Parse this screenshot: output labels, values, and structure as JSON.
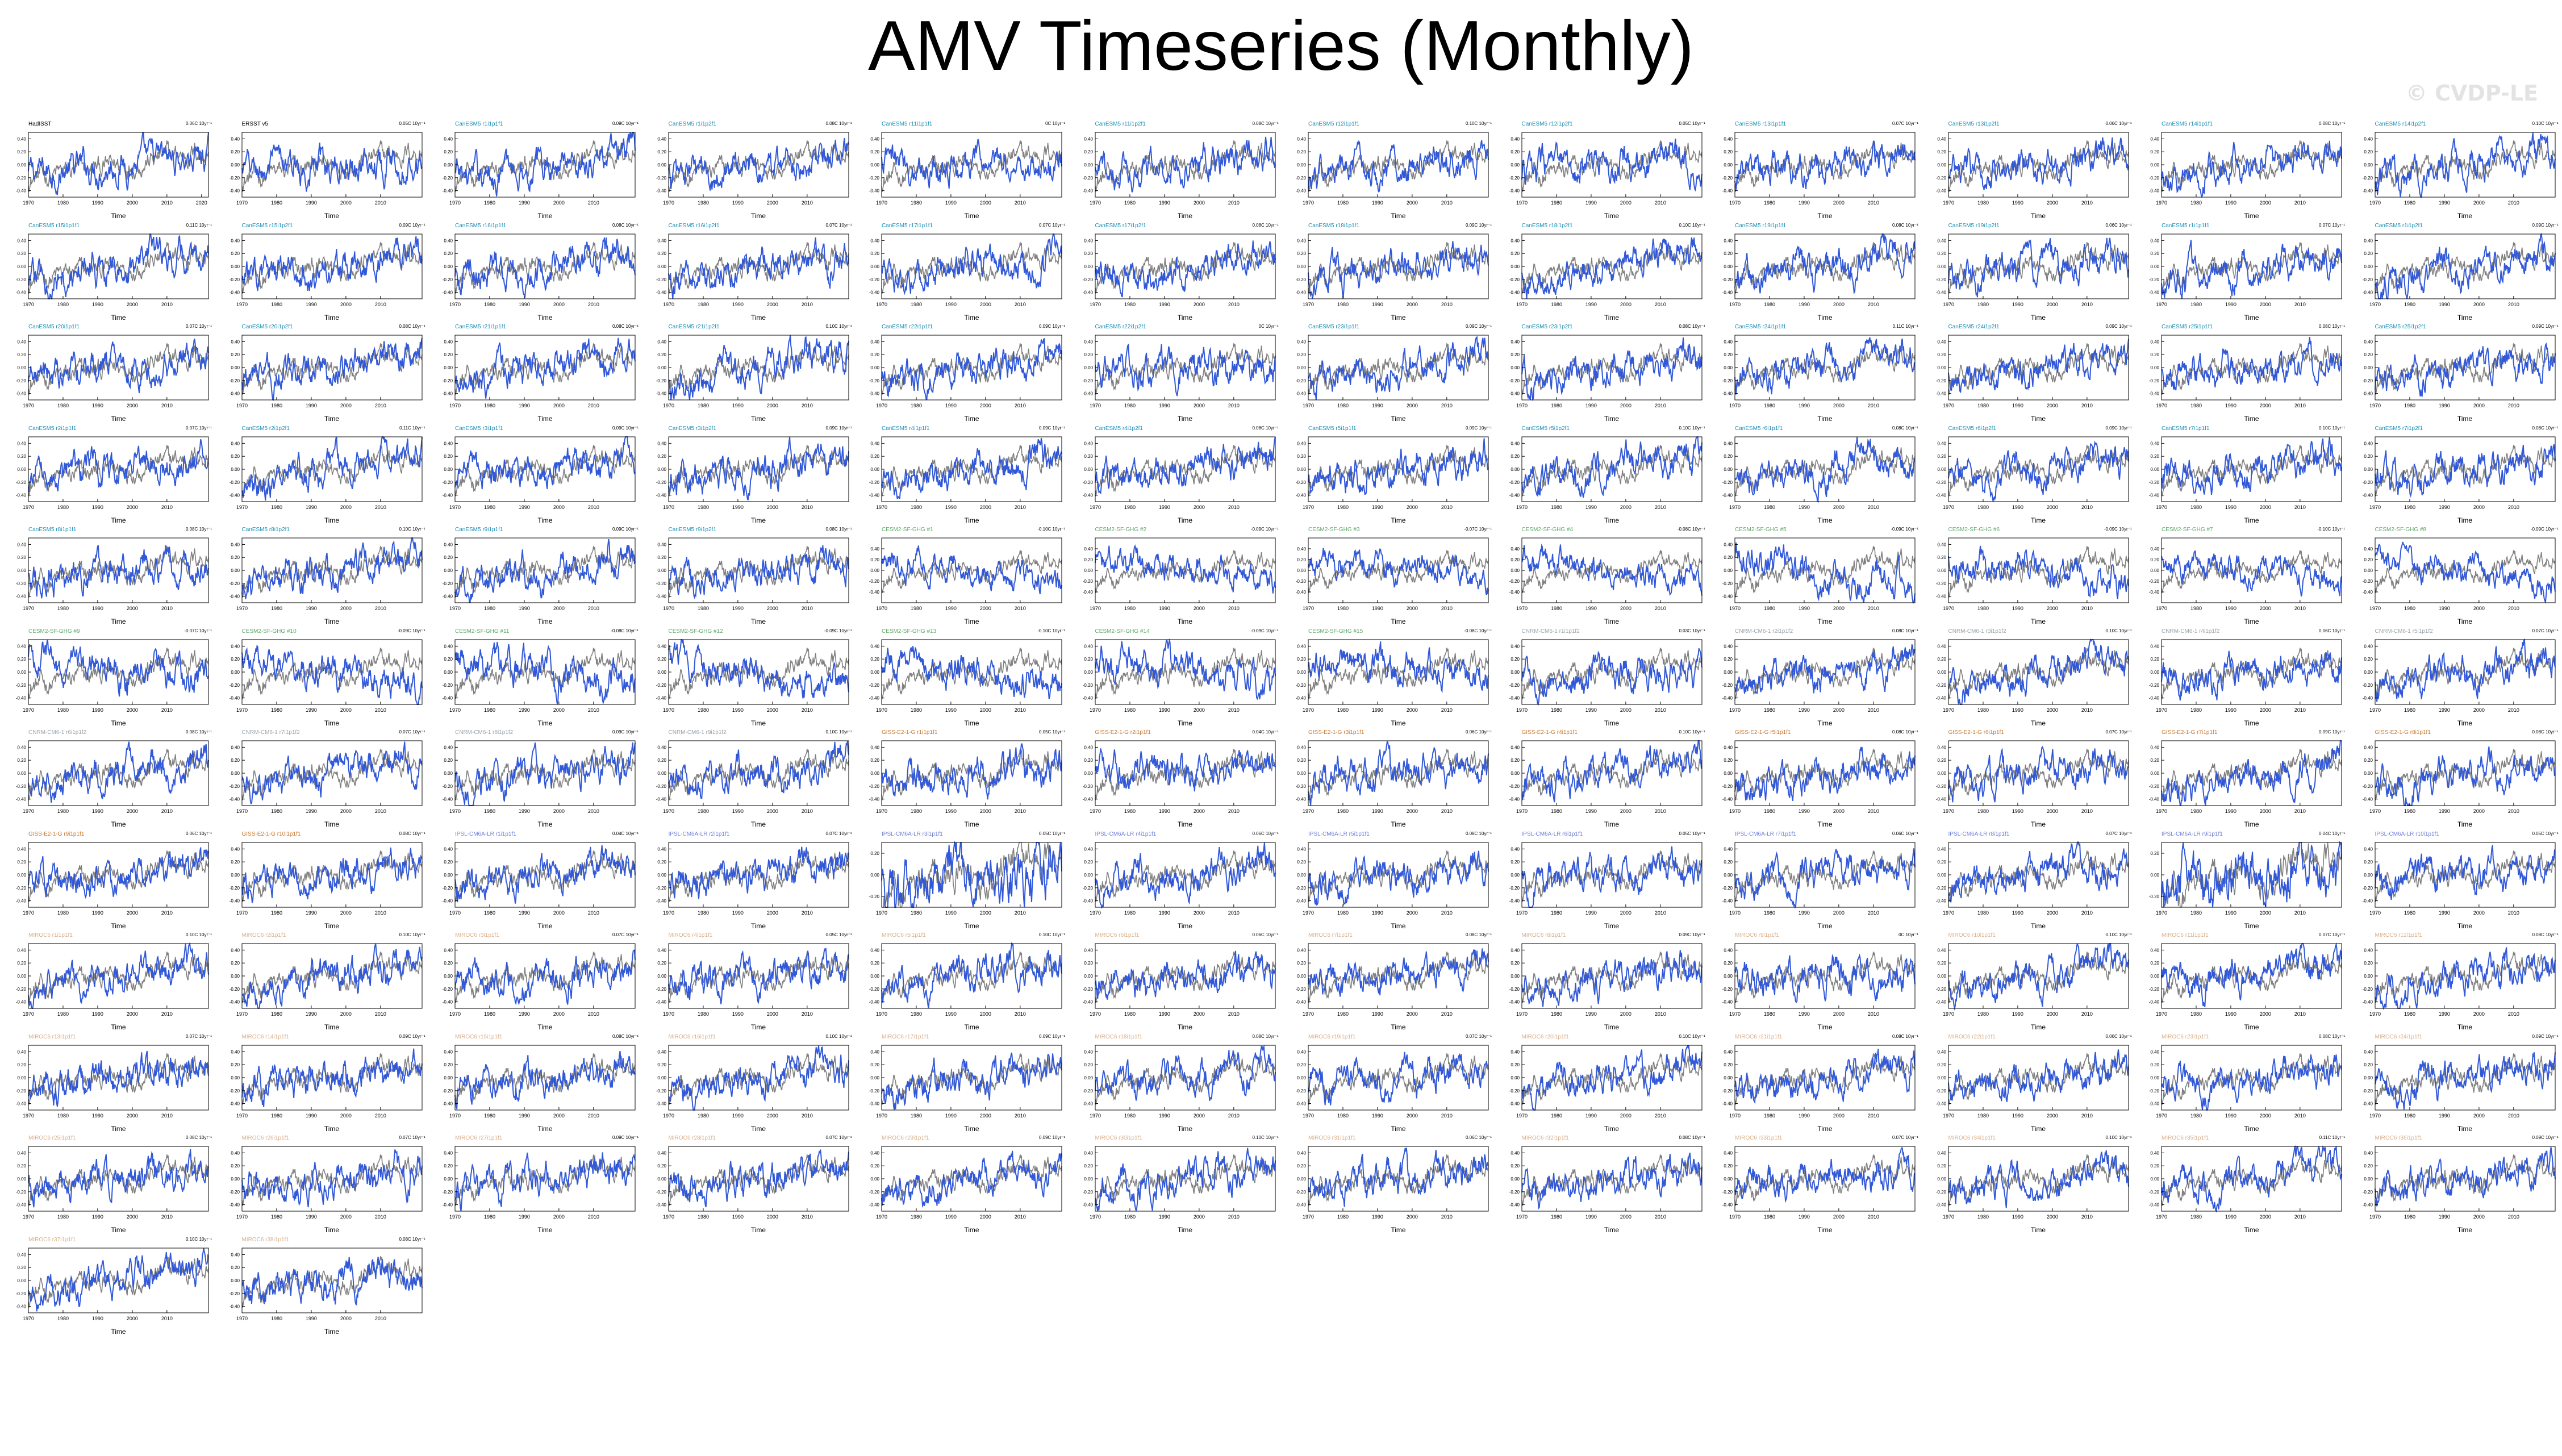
{
  "title": "AMV Timeseries (Monthly)",
  "watermark": "© CVDP-LE",
  "colors": {
    "observed": "#808080",
    "simulated": "#3158d8",
    "axis": "#000000"
  },
  "chart_data": {
    "type": "line",
    "layout": "small-multiples",
    "xlabel": "Time",
    "xlim_default": [
      1970,
      2022
    ],
    "xticks_default": [
      1970,
      1980,
      1990,
      2000,
      2010
    ],
    "ylim_default": [
      -0.5,
      0.5
    ],
    "yticks_default": [
      -0.4,
      -0.2,
      0.0,
      0.2,
      0.4
    ],
    "series_names": [],
    "panels": [
      {
        "title": "HadISST",
        "title_color": "#000000",
        "trend": "0.06C 10yr⁻¹",
        "xticks": [
          1970,
          1980,
          1990,
          2000,
          2010,
          2020
        ]
      },
      {
        "title": "ERSST v5",
        "title_color": "#000000",
        "trend": "0.05C 10yr⁻¹",
        "xticks": [
          1970,
          1980,
          1990,
          2000,
          2010
        ]
      },
      {
        "title": "CanESM5 r1i1p1f1",
        "title_color": "#1b8fb5",
        "trend": "0.09C 10yr⁻¹"
      },
      {
        "title": "CanESM5 r1i1p2f1",
        "title_color": "#1b8fb5",
        "trend": "0.08C 10yr⁻¹"
      },
      {
        "title": "CanESM5 r11i1p1f1",
        "title_color": "#1b8fb5",
        "trend": "0C 10yr⁻¹"
      },
      {
        "title": "CanESM5 r11i1p2f1",
        "title_color": "#1b8fb5",
        "trend": "0.08C 10yr⁻¹"
      },
      {
        "title": "CanESM5 r12i1p1f1",
        "title_color": "#1b8fb5",
        "trend": "0.10C 10yr⁻¹"
      },
      {
        "title": "CanESM5 r12i1p2f1",
        "title_color": "#1b8fb5",
        "trend": "0.05C 10yr⁻¹"
      },
      {
        "title": "CanESM5 r13i1p1f1",
        "title_color": "#1b8fb5",
        "trend": "0.07C 10yr⁻¹"
      },
      {
        "title": "CanESM5 r13i1p2f1",
        "title_color": "#1b8fb5",
        "trend": "0.06C 10yr⁻¹"
      },
      {
        "title": "CanESM5 r14i1p1f1",
        "title_color": "#1b8fb5",
        "trend": "0.08C 10yr⁻¹"
      },
      {
        "title": "CanESM5 r14i1p2f1",
        "title_color": "#1b8fb5",
        "trend": "0.10C 10yr⁻¹"
      },
      {
        "title": "CanESM5 r15i1p1f1",
        "title_color": "#1b8fb5",
        "trend": "0.11C 10yr⁻¹"
      },
      {
        "title": "CanESM5 r15i1p2f1",
        "title_color": "#1b8fb5",
        "trend": "0.09C 10yr⁻¹"
      },
      {
        "title": "CanESM5 r16i1p1f1",
        "title_color": "#1b8fb5",
        "trend": "0.08C 10yr⁻¹"
      },
      {
        "title": "CanESM5 r16i1p2f1",
        "title_color": "#1b8fb5",
        "trend": "0.07C 10yr⁻¹"
      },
      {
        "title": "CanESM5 r17i1p1f1",
        "title_color": "#1b8fb5",
        "trend": "0.07C 10yr⁻¹"
      },
      {
        "title": "CanESM5 r17i1p2f1",
        "title_color": "#1b8fb5",
        "trend": "0.08C 10yr⁻¹"
      },
      {
        "title": "CanESM5 r18i1p1f1",
        "title_color": "#1b8fb5",
        "trend": "0.09C 10yr⁻¹"
      },
      {
        "title": "CanESM5 r18i1p2f1",
        "title_color": "#1b8fb5",
        "trend": "0.10C 10yr⁻¹"
      },
      {
        "title": "CanESM5 r19i1p1f1",
        "title_color": "#1b8fb5",
        "trend": "0.08C 10yr⁻¹"
      },
      {
        "title": "CanESM5 r19i1p2f1",
        "title_color": "#1b8fb5",
        "trend": "0.06C 10yr⁻¹"
      },
      {
        "title": "CanESM5 r1i1p1f1",
        "title_color": "#1b8fb5",
        "trend": "0.07C 10yr⁻¹"
      },
      {
        "title": "CanESM5 r1i1p2f1",
        "title_color": "#1b8fb5",
        "trend": "0.09C 10yr⁻¹"
      },
      {
        "title": "CanESM5 r20i1p1f1",
        "title_color": "#1b8fb5",
        "trend": "0.07C 10yr⁻¹"
      },
      {
        "title": "CanESM5 r20i1p2f1",
        "title_color": "#1b8fb5",
        "trend": "0.08C 10yr⁻¹"
      },
      {
        "title": "CanESM5 r21i1p1f1",
        "title_color": "#1b8fb5",
        "trend": "0.08C 10yr⁻¹"
      },
      {
        "title": "CanESM5 r21i1p2f1",
        "title_color": "#1b8fb5",
        "trend": "0.10C 10yr⁻¹"
      },
      {
        "title": "CanESM5 r22i1p1f1",
        "title_color": "#1b8fb5",
        "trend": "0.09C 10yr⁻¹"
      },
      {
        "title": "CanESM5 r22i1p2f1",
        "title_color": "#1b8fb5",
        "trend": "0C 10yr⁻¹"
      },
      {
        "title": "CanESM5 r23i1p1f1",
        "title_color": "#1b8fb5",
        "trend": "0.09C 10yr⁻¹"
      },
      {
        "title": "CanESM5 r23i1p2f1",
        "title_color": "#1b8fb5",
        "trend": "0.08C 10yr⁻¹"
      },
      {
        "title": "CanESM5 r24i1p1f1",
        "title_color": "#1b8fb5",
        "trend": "0.11C 10yr⁻¹"
      },
      {
        "title": "CanESM5 r24i1p2f1",
        "title_color": "#1b8fb5",
        "trend": "0.09C 10yr⁻¹"
      },
      {
        "title": "CanESM5 r25i1p1f1",
        "title_color": "#1b8fb5",
        "trend": "0.08C 10yr⁻¹"
      },
      {
        "title": "CanESM5 r25i1p2f1",
        "title_color": "#1b8fb5",
        "trend": "0.09C 10yr⁻¹"
      },
      {
        "title": "CanESM5 r2i1p1f1",
        "title_color": "#1b8fb5",
        "trend": "0.07C 10yr⁻¹"
      },
      {
        "title": "CanESM5 r2i1p2f1",
        "title_color": "#1b8fb5",
        "trend": "0.11C 10yr⁻¹"
      },
      {
        "title": "CanESM5 r3i1p1f1",
        "title_color": "#1b8fb5",
        "trend": "0.09C 10yr⁻¹"
      },
      {
        "title": "CanESM5 r3i1p2f1",
        "title_color": "#1b8fb5",
        "trend": "0.09C 10yr⁻¹"
      },
      {
        "title": "CanESM5 r4i1p1f1",
        "title_color": "#1b8fb5",
        "trend": "0.09C 10yr⁻¹"
      },
      {
        "title": "CanESM5 r4i1p2f1",
        "title_color": "#1b8fb5",
        "trend": "0.08C 10yr⁻¹"
      },
      {
        "title": "CanESM5 r5i1p1f1",
        "title_color": "#1b8fb5",
        "trend": "0.09C 10yr⁻¹"
      },
      {
        "title": "CanESM5 r5i1p2f1",
        "title_color": "#1b8fb5",
        "trend": "0.10C 10yr⁻¹"
      },
      {
        "title": "CanESM5 r6i1p1f1",
        "title_color": "#1b8fb5",
        "trend": "0.08C 10yr⁻¹"
      },
      {
        "title": "CanESM5 r6i1p2f1",
        "title_color": "#1b8fb5",
        "trend": "0.09C 10yr⁻¹"
      },
      {
        "title": "CanESM5 r7i1p1f1",
        "title_color": "#1b8fb5",
        "trend": "0.10C 10yr⁻¹"
      },
      {
        "title": "CanESM5 r7i1p2f1",
        "title_color": "#1b8fb5",
        "trend": "0.08C 10yr⁻¹"
      },
      {
        "title": "CanESM5 r8i1p1f1",
        "title_color": "#1b8fb5",
        "trend": "0.08C 10yr⁻¹"
      },
      {
        "title": "CanESM5 r8i1p2f1",
        "title_color": "#1b8fb5",
        "trend": "0.10C 10yr⁻¹"
      },
      {
        "title": "CanESM5 r9i1p1f1",
        "title_color": "#1b8fb5",
        "trend": "0.09C 10yr⁻¹"
      },
      {
        "title": "CanESM5 r9i1p2f1",
        "title_color": "#1b8fb5",
        "trend": "0.08C 10yr⁻¹"
      },
      {
        "title": "CESM2-SF-GHG #1",
        "title_color": "#5fa86a",
        "trend": "-0.10C 10yr⁻¹",
        "ylim": [
          -0.6,
          0.6
        ],
        "yticks": [
          -0.4,
          -0.2,
          0.0,
          0.2,
          0.4
        ]
      },
      {
        "title": "CESM2-SF-GHG #2",
        "title_color": "#5fa86a",
        "trend": "-0.09C 10yr⁻¹",
        "ylim": [
          -0.6,
          0.6
        ],
        "yticks": [
          -0.4,
          -0.2,
          0.0,
          0.2,
          0.4
        ]
      },
      {
        "title": "CESM2-SF-GHG #3",
        "title_color": "#5fa86a",
        "trend": "-0.07C 10yr⁻¹",
        "ylim": [
          -0.6,
          0.6
        ],
        "yticks": [
          -0.4,
          -0.2,
          0.0,
          0.2,
          0.4
        ]
      },
      {
        "title": "CESM2-SF-GHG #4",
        "title_color": "#5fa86a",
        "trend": "-0.08C 10yr⁻¹",
        "ylim": [
          -0.6,
          0.6
        ],
        "yticks": [
          -0.4,
          -0.2,
          0.0,
          0.2,
          0.4
        ]
      },
      {
        "title": "CESM2-SF-GHG #5",
        "title_color": "#5fa86a",
        "trend": "-0.09C 10yr⁻¹"
      },
      {
        "title": "CESM2-SF-GHG #6",
        "title_color": "#5fa86a",
        "trend": "-0.09C 10yr⁻¹"
      },
      {
        "title": "CESM2-SF-GHG #7",
        "title_color": "#5fa86a",
        "trend": "-0.10C 10yr⁻¹",
        "ylim": [
          -0.6,
          0.6
        ],
        "yticks": [
          -0.4,
          -0.2,
          0.0,
          0.2,
          0.4
        ]
      },
      {
        "title": "CESM2-SF-GHG #8",
        "title_color": "#5fa86a",
        "trend": "-0.09C 10yr⁻¹",
        "ylim": [
          -0.6,
          0.6
        ],
        "yticks": [
          -0.4,
          -0.2,
          0.0,
          0.2,
          0.4
        ]
      },
      {
        "title": "CESM2-SF-GHG #9",
        "title_color": "#5fa86a",
        "trend": "-0.07C 10yr⁻¹"
      },
      {
        "title": "CESM2-SF-GHG #10",
        "title_color": "#5fa86a",
        "trend": "-0.09C 10yr⁻¹"
      },
      {
        "title": "CESM2-SF-GHG #11",
        "title_color": "#5fa86a",
        "trend": "-0.08C 10yr⁻¹"
      },
      {
        "title": "CESM2-SF-GHG #12",
        "title_color": "#5fa86a",
        "trend": "-0.09C 10yr⁻¹"
      },
      {
        "title": "CESM2-SF-GHG #13",
        "title_color": "#5fa86a",
        "trend": "-0.10C 10yr⁻¹"
      },
      {
        "title": "CESM2-SF-GHG #14",
        "title_color": "#5fa86a",
        "trend": "-0.09C 10yr⁻¹"
      },
      {
        "title": "CESM2-SF-GHG #15",
        "title_color": "#5fa86a",
        "trend": "-0.08C 10yr⁻¹"
      },
      {
        "title": "CNRM-CM6-1 r1i1p1f2",
        "title_color": "#9aa3a8",
        "trend": "0.03C 10yr⁻¹"
      },
      {
        "title": "CNRM-CM6-1 r2i1p1f2",
        "title_color": "#9aa3a8",
        "trend": "0.08C 10yr⁻¹"
      },
      {
        "title": "CNRM-CM6-1 r3i1p1f2",
        "title_color": "#9aa3a8",
        "trend": "0.10C 10yr⁻¹"
      },
      {
        "title": "CNRM-CM6-1 r4i1p1f2",
        "title_color": "#9aa3a8",
        "trend": "0.06C 10yr⁻¹"
      },
      {
        "title": "CNRM-CM6-1 r5i1p1f2",
        "title_color": "#9aa3a8",
        "trend": "0.07C 10yr⁻¹"
      },
      {
        "title": "CNRM-CM6-1 r6i1p1f2",
        "title_color": "#9aa3a8",
        "trend": "0.08C 10yr⁻¹"
      },
      {
        "title": "CNRM-CM6-1 r7i1p1f2",
        "title_color": "#9aa3a8",
        "trend": "0.07C 10yr⁻¹"
      },
      {
        "title": "CNRM-CM6-1 r8i1p1f2",
        "title_color": "#9aa3a8",
        "trend": "0.09C 10yr⁻¹"
      },
      {
        "title": "CNRM-CM6-1 r9i1p1f2",
        "title_color": "#9aa3a8",
        "trend": "0.10C 10yr⁻¹"
      },
      {
        "title": "GISS-E2-1-G r1i1p1f1",
        "title_color": "#c9772c",
        "trend": "0.05C 10yr⁻¹"
      },
      {
        "title": "GISS-E2-1-G r2i1p1f1",
        "title_color": "#c9772c",
        "trend": "0.04C 10yr⁻¹"
      },
      {
        "title": "GISS-E2-1-G r3i1p1f1",
        "title_color": "#c9772c",
        "trend": "0.06C 10yr⁻¹"
      },
      {
        "title": "GISS-E2-1-G r4i1p1f1",
        "title_color": "#c9772c",
        "trend": "0.10C 10yr⁻¹"
      },
      {
        "title": "GISS-E2-1-G r5i1p1f1",
        "title_color": "#c9772c",
        "trend": "0.08C 10yr⁻¹"
      },
      {
        "title": "GISS-E2-1-G r6i1p1f1",
        "title_color": "#c9772c",
        "trend": "0.07C 10yr⁻¹"
      },
      {
        "title": "GISS-E2-1-G r7i1p1f1",
        "title_color": "#c9772c",
        "trend": "0.09C 10yr⁻¹"
      },
      {
        "title": "GISS-E2-1-G r8i1p1f1",
        "title_color": "#c9772c",
        "trend": "0.08C 10yr⁻¹"
      },
      {
        "title": "GISS-E2-1-G r9i1p1f1",
        "title_color": "#c9772c",
        "trend": "0.06C 10yr⁻¹"
      },
      {
        "title": "GISS-E2-1-G r10i1p1f1",
        "title_color": "#c9772c",
        "trend": "0.08C 10yr⁻¹"
      },
      {
        "title": "IPSL-CM6A-LR r1i1p1f1",
        "title_color": "#6f7fd6",
        "trend": "0.04C 10yr⁻¹"
      },
      {
        "title": "IPSL-CM6A-LR r2i1p1f1",
        "title_color": "#6f7fd6",
        "trend": "0.07C 10yr⁻¹"
      },
      {
        "title": "IPSL-CM6A-LR r3i1p1f1",
        "title_color": "#6f7fd6",
        "trend": "0.05C 10yr⁻¹",
        "ylim": [
          -0.3,
          0.3
        ],
        "yticks": [
          -0.2,
          0.0,
          0.2
        ]
      },
      {
        "title": "IPSL-CM6A-LR r4i1p1f1",
        "title_color": "#6f7fd6",
        "trend": "0.06C 10yr⁻¹"
      },
      {
        "title": "IPSL-CM6A-LR r5i1p1f1",
        "title_color": "#6f7fd6",
        "trend": "0.08C 10yr⁻¹"
      },
      {
        "title": "IPSL-CM6A-LR r6i1p1f1",
        "title_color": "#6f7fd6",
        "trend": "0.05C 10yr⁻¹"
      },
      {
        "title": "IPSL-CM6A-LR r7i1p1f1",
        "title_color": "#6f7fd6",
        "trend": "0.06C 10yr⁻¹"
      },
      {
        "title": "IPSL-CM6A-LR r8i1p1f1",
        "title_color": "#6f7fd6",
        "trend": "0.07C 10yr⁻¹"
      },
      {
        "title": "IPSL-CM6A-LR r9i1p1f1",
        "title_color": "#6f7fd6",
        "trend": "0.04C 10yr⁻¹",
        "ylim": [
          -0.3,
          0.3
        ],
        "yticks": [
          -0.2,
          0.0,
          0.2
        ]
      },
      {
        "title": "IPSL-CM6A-LR r10i1p1f1",
        "title_color": "#6f7fd6",
        "trend": "0.05C 10yr⁻¹"
      },
      {
        "title": "MIROC6 r1i1p1f1",
        "title_color": "#d8b08c",
        "trend": "0.10C 10yr⁻¹"
      },
      {
        "title": "MIROC6 r2i1p1f1",
        "title_color": "#d8b08c",
        "trend": "0.10C 10yr⁻¹"
      },
      {
        "title": "MIROC6 r3i1p1f1",
        "title_color": "#d8b08c",
        "trend": "0.07C 10yr⁻¹"
      },
      {
        "title": "MIROC6 r4i1p1f1",
        "title_color": "#d8b08c",
        "trend": "0.05C 10yr⁻¹"
      },
      {
        "title": "MIROC6 r5i1p1f1",
        "title_color": "#d8b08c",
        "trend": "0.10C 10yr⁻¹"
      },
      {
        "title": "MIROC6 r6i1p1f1",
        "title_color": "#d8b08c",
        "trend": "0.06C 10yr⁻¹"
      },
      {
        "title": "MIROC6 r7i1p1f1",
        "title_color": "#d8b08c",
        "trend": "0.08C 10yr⁻¹"
      },
      {
        "title": "MIROC6 r8i1p1f1",
        "title_color": "#d8b08c",
        "trend": "0.09C 10yr⁻¹"
      },
      {
        "title": "MIROC6 r9i1p1f1",
        "title_color": "#d8b08c",
        "trend": "0C 10yr⁻¹"
      },
      {
        "title": "MIROC6 r10i1p1f1",
        "title_color": "#d8b08c",
        "trend": "0.10C 10yr⁻¹"
      },
      {
        "title": "MIROC6 r11i1p1f1",
        "title_color": "#d8b08c",
        "trend": "0.07C 10yr⁻¹"
      },
      {
        "title": "MIROC6 r12i1p1f1",
        "title_color": "#d8b08c",
        "trend": "0.08C 10yr⁻¹"
      },
      {
        "title": "MIROC6 r13i1p1f1",
        "title_color": "#d8b08c",
        "trend": "0.07C 10yr⁻¹"
      },
      {
        "title": "MIROC6 r14i1p1f1",
        "title_color": "#d8b08c",
        "trend": "0.09C 10yr⁻¹"
      },
      {
        "title": "MIROC6 r15i1p1f1",
        "title_color": "#d8b08c",
        "trend": "0.08C 10yr⁻¹"
      },
      {
        "title": "MIROC6 r16i1p1f1",
        "title_color": "#d8b08c",
        "trend": "0.10C 10yr⁻¹"
      },
      {
        "title": "MIROC6 r17i1p1f1",
        "title_color": "#d8b08c",
        "trend": "0.09C 10yr⁻¹"
      },
      {
        "title": "MIROC6 r18i1p1f1",
        "title_color": "#d8b08c",
        "trend": "0.08C 10yr⁻¹"
      },
      {
        "title": "MIROC6 r19i1p1f1",
        "title_color": "#d8b08c",
        "trend": "0.07C 10yr⁻¹"
      },
      {
        "title": "MIROC6 r20i1p1f1",
        "title_color": "#d8b08c",
        "trend": "0.10C 10yr⁻¹"
      },
      {
        "title": "MIROC6 r21i1p1f1",
        "title_color": "#d8b08c",
        "trend": "0.08C 10yr⁻¹"
      },
      {
        "title": "MIROC6 r22i1p1f1",
        "title_color": "#d8b08c",
        "trend": "0.06C 10yr⁻¹"
      },
      {
        "title": "MIROC6 r23i1p1f1",
        "title_color": "#d8b08c",
        "trend": "0.08C 10yr⁻¹"
      },
      {
        "title": "MIROC6 r24i1p1f1",
        "title_color": "#d8b08c",
        "trend": "0.09C 10yr⁻¹"
      },
      {
        "title": "MIROC6 r25i1p1f1",
        "title_color": "#d8b08c",
        "trend": "0.08C 10yr⁻¹"
      },
      {
        "title": "MIROC6 r26i1p1f1",
        "title_color": "#d8b08c",
        "trend": "0.07C 10yr⁻¹"
      },
      {
        "title": "MIROC6 r27i1p1f1",
        "title_color": "#d8b08c",
        "trend": "0.09C 10yr⁻¹"
      },
      {
        "title": "MIROC6 r28i1p1f1",
        "title_color": "#d8b08c",
        "trend": "0.07C 10yr⁻¹"
      },
      {
        "title": "MIROC6 r29i1p1f1",
        "title_color": "#d8b08c",
        "trend": "0.09C 10yr⁻¹"
      },
      {
        "title": "MIROC6 r30i1p1f1",
        "title_color": "#d8b08c",
        "trend": "0.10C 10yr⁻¹"
      },
      {
        "title": "MIROC6 r31i1p1f1",
        "title_color": "#d8b08c",
        "trend": "0.06C 10yr⁻¹"
      },
      {
        "title": "MIROC6 r32i1p1f1",
        "title_color": "#d8b08c",
        "trend": "0.08C 10yr⁻¹"
      },
      {
        "title": "MIROC6 r33i1p1f1",
        "title_color": "#d8b08c",
        "trend": "0.07C 10yr⁻¹"
      },
      {
        "title": "MIROC6 r34i1p1f1",
        "title_color": "#d8b08c",
        "trend": "0.10C 10yr⁻¹"
      },
      {
        "title": "MIROC6 r35i1p1f1",
        "title_color": "#d8b08c",
        "trend": "0.11C 10yr⁻¹"
      },
      {
        "title": "MIROC6 r36i1p1f1",
        "title_color": "#d8b08c",
        "trend": "0.09C 10yr⁻¹"
      },
      {
        "title": "MIROC6 r37i1p1f1",
        "title_color": "#d8b08c",
        "trend": "0.10C 10yr⁻¹"
      },
      {
        "title": "MIROC6 r38i1p1f1",
        "title_color": "#d8b08c",
        "trend": "0.08C 10yr⁻¹"
      }
    ]
  }
}
